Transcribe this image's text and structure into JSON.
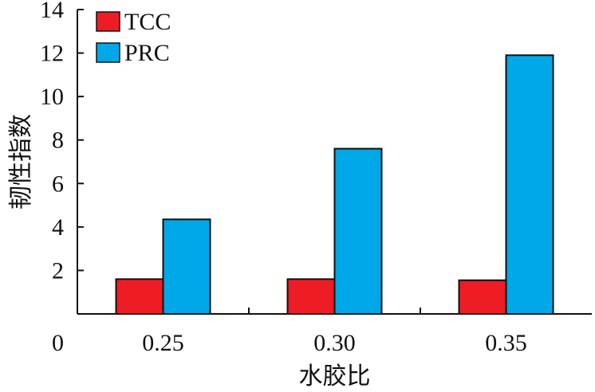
{
  "chart_data": {
    "type": "bar",
    "categories": [
      "0.25",
      "0.30",
      "0.35"
    ],
    "series": [
      {
        "name": "TCC",
        "values": [
          1.6,
          1.6,
          1.55
        ],
        "color": "#ee1c25"
      },
      {
        "name": "PRC",
        "values": [
          4.35,
          7.6,
          11.9
        ],
        "color": "#00a8e8"
      }
    ],
    "xlabel": "水胶比",
    "ylabel": "韧性指数",
    "ylim": [
      0,
      14
    ],
    "yticks": [
      "0",
      "2",
      "4",
      "6",
      "8",
      "10",
      "12",
      "14"
    ],
    "legend_position": "top-left",
    "grid": false
  }
}
